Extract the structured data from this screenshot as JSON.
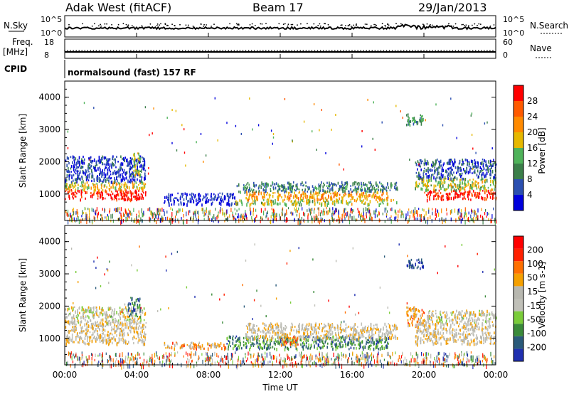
{
  "header": {
    "station": "Adak West (fitACF)",
    "beam": "Beam 17",
    "date": "29/Jan/2013"
  },
  "panel_labels": {
    "nsky": "N.Sky",
    "nsky_ticks": [
      "10^5",
      "10^0"
    ],
    "nsearch": "N.Search",
    "nsearch_ticks": [
      "10^5",
      "10^0"
    ],
    "freq_top": "Freq.",
    "freq_unit": "[MHz]",
    "freq_ticks": [
      "18",
      "8"
    ],
    "nave": "Nave",
    "nave_ticks": [
      "60",
      "0"
    ],
    "cpid": "CPID",
    "cpid_value": "normalsound (fast) 157 RF"
  },
  "colors": {
    "power_scale": [
      "#0000dd",
      "#2b4fb0",
      "#3b7f4a",
      "#4fb35a",
      "#e6b800",
      "#ff8a00",
      "#ff5a00",
      "#ff0000"
    ],
    "velocity_scale": [
      "#2030b0",
      "#2a5a7a",
      "#3a8a3a",
      "#7acc3a",
      "#c0c0b8",
      "#b8b8b0",
      "#f5a000",
      "#ff7000",
      "#ff2000",
      "#ff0000"
    ]
  },
  "chart_data": [
    {
      "type": "heatmap",
      "panel": "power",
      "xlabel": "Time UT",
      "ylabel": "Slant Range [km]",
      "xticks": [
        "00:00",
        "04:00",
        "08:00",
        "12:00",
        "16:00",
        "20:00",
        "00:00"
      ],
      "x_hours": [
        0,
        4,
        8,
        12,
        16,
        20,
        24
      ],
      "yticks": [
        1000,
        2000,
        3000,
        4000
      ],
      "ylim": [
        180,
        4500
      ],
      "colorbar": {
        "label": "Power [dB]",
        "ticks": [
          "28",
          "24",
          "20",
          "16",
          "12",
          "8",
          "4"
        ]
      },
      "bands": [
        {
          "t0": 0,
          "t1": 4.5,
          "r0": 850,
          "r1": 1150,
          "level": 0.95
        },
        {
          "t0": 0,
          "t1": 4.5,
          "r0": 1150,
          "r1": 1400,
          "level": 0.55
        },
        {
          "t0": 0,
          "t1": 4.5,
          "r0": 1400,
          "r1": 2200,
          "level": 0.15
        },
        {
          "t0": 3.8,
          "t1": 4.2,
          "r0": 1600,
          "r1": 2300,
          "level": 0.5
        },
        {
          "t0": 5.5,
          "t1": 9.5,
          "r0": 700,
          "r1": 1050,
          "level": 0.1
        },
        {
          "t0": 9.5,
          "t1": 18.5,
          "r0": 700,
          "r1": 850,
          "level": 0.5
        },
        {
          "t0": 10,
          "t1": 18,
          "r0": 850,
          "r1": 1100,
          "level": 0.65
        },
        {
          "t0": 9.5,
          "t1": 18.5,
          "r0": 1100,
          "r1": 1400,
          "level": 0.3
        },
        {
          "t0": 19,
          "t1": 20,
          "r0": 3150,
          "r1": 3500,
          "level": 0.35
        },
        {
          "t0": 20,
          "t1": 24,
          "r0": 850,
          "r1": 1150,
          "level": 0.95
        },
        {
          "t0": 19.5,
          "t1": 24,
          "r0": 1150,
          "r1": 1500,
          "level": 0.5
        },
        {
          "t0": 19.5,
          "t1": 24,
          "r0": 1500,
          "r1": 2100,
          "level": 0.2
        }
      ]
    },
    {
      "type": "heatmap",
      "panel": "velocity",
      "xlabel": "Time UT",
      "ylabel": "Slant Range [km]",
      "xticks": [
        "00:00",
        "04:00",
        "08:00",
        "12:00",
        "16:00",
        "20:00",
        "00:00"
      ],
      "x_hours": [
        0,
        4,
        8,
        12,
        16,
        20,
        24
      ],
      "yticks": [
        1000,
        2000,
        3000,
        4000
      ],
      "ylim": [
        180,
        4500
      ],
      "colorbar": {
        "label": "Velocity [m s-1]",
        "ticks": [
          "200",
          "100",
          "50",
          "15",
          "-15",
          "-50",
          "-100",
          "-200"
        ]
      },
      "bands": [
        {
          "t0": 0,
          "t1": 4.5,
          "r0": 850,
          "r1": 1500,
          "level": 0.55
        },
        {
          "t0": 0,
          "t1": 4.5,
          "r0": 1500,
          "r1": 2000,
          "level": 0.5
        },
        {
          "t0": 3.5,
          "t1": 4.2,
          "r0": 1700,
          "r1": 2300,
          "level": 0.2
        },
        {
          "t0": 5.5,
          "t1": 9,
          "r0": 700,
          "r1": 900,
          "level": 0.68
        },
        {
          "t0": 9,
          "t1": 18,
          "r0": 700,
          "r1": 1100,
          "level": 0.22
        },
        {
          "t0": 10,
          "t1": 18.5,
          "r0": 1000,
          "r1": 1500,
          "level": 0.55
        },
        {
          "t0": 12,
          "t1": 13,
          "r0": 800,
          "r1": 1100,
          "level": 0.68
        },
        {
          "t0": 19,
          "t1": 20,
          "r0": 3200,
          "r1": 3500,
          "level": 0.05
        },
        {
          "t0": 19,
          "t1": 20,
          "r0": 1400,
          "r1": 2000,
          "level": 0.68
        },
        {
          "t0": 19.5,
          "t1": 24,
          "r0": 850,
          "r1": 1500,
          "level": 0.55
        },
        {
          "t0": 20,
          "t1": 24,
          "r0": 1500,
          "r1": 1900,
          "level": 0.5
        }
      ]
    }
  ]
}
